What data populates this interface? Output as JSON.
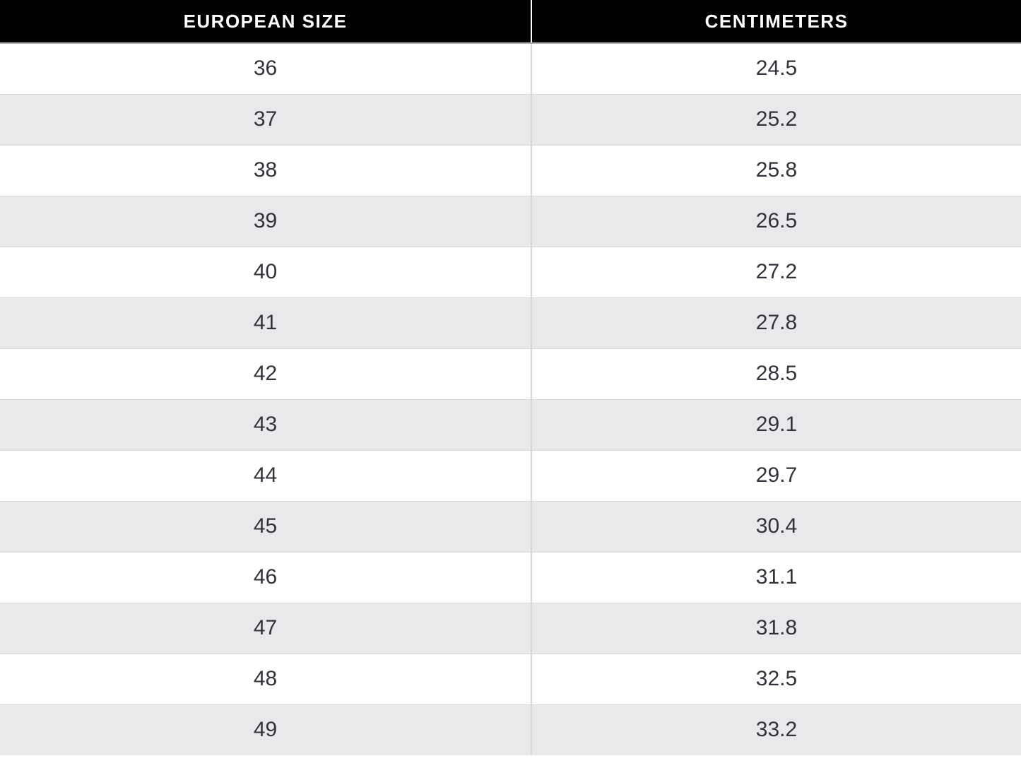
{
  "table": {
    "columns": [
      "EUROPEAN SIZE",
      "CENTIMETERS"
    ],
    "rows": [
      [
        "36",
        "24.5"
      ],
      [
        "37",
        "25.2"
      ],
      [
        "38",
        "25.8"
      ],
      [
        "39",
        "26.5"
      ],
      [
        "40",
        "27.2"
      ],
      [
        "41",
        "27.8"
      ],
      [
        "42",
        "28.5"
      ],
      [
        "43",
        "29.1"
      ],
      [
        "44",
        "29.7"
      ],
      [
        "45",
        "30.4"
      ],
      [
        "46",
        "31.1"
      ],
      [
        "47",
        "31.8"
      ],
      [
        "48",
        "32.5"
      ],
      [
        "49",
        "33.2"
      ]
    ]
  },
  "colors": {
    "header_bg": "#000000",
    "header_text": "#ffffff",
    "row_bg": "#ffffff",
    "row_alt_bg": "#e9e8ea",
    "border": "#d6d5d7",
    "header_border": "#acacae",
    "cell_text": "#32323a"
  }
}
